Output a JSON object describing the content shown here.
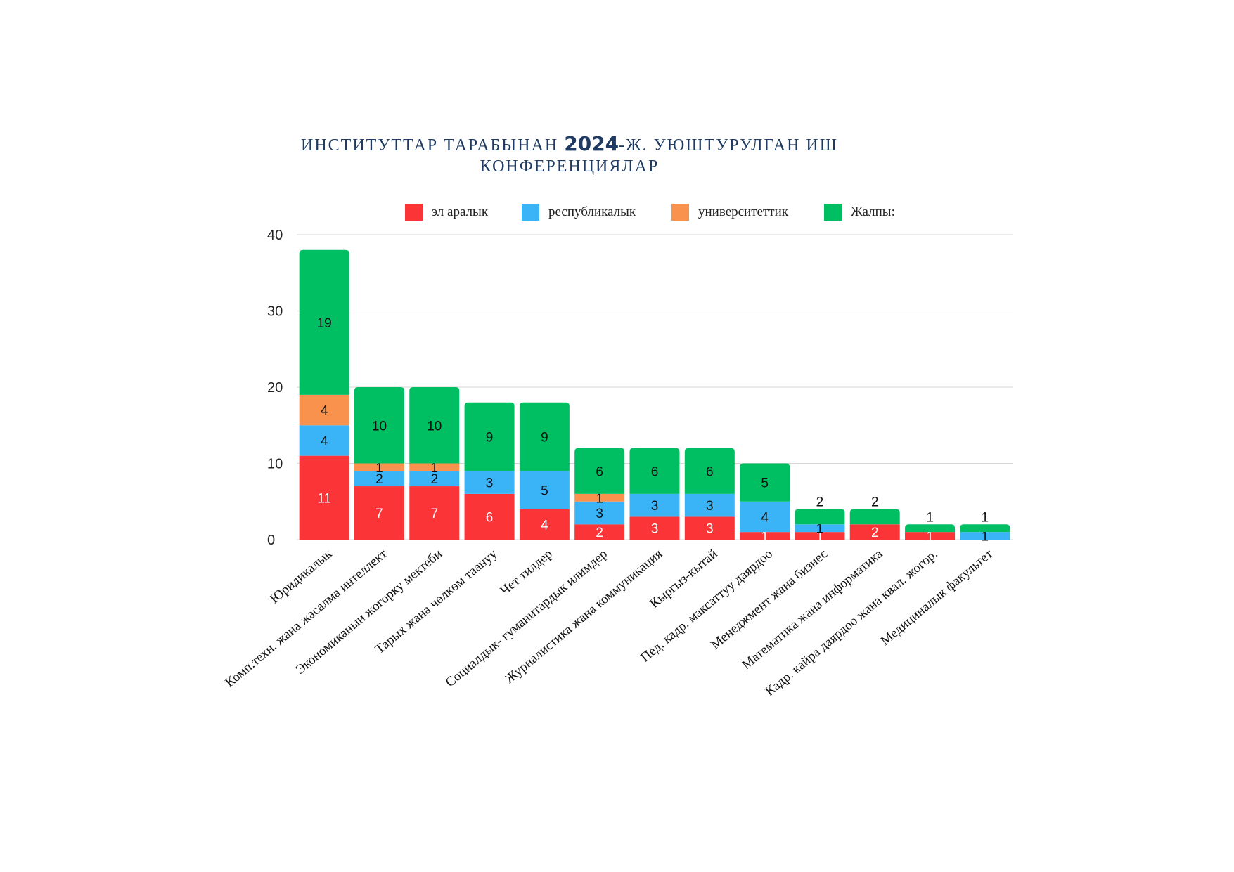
{
  "chart_data": {
    "type": "bar",
    "stacked": true,
    "title": {
      "prefix": "ИНСТИТУТТАР ТАРАБЫНАН ",
      "year": "2024",
      "suffix_line1": "-Ж. УЮШТУРУЛГАН ИШ",
      "line2": "КОНФЕРЕНЦИЯЛАР"
    },
    "legend_position": "top",
    "grid": true,
    "ylim": [
      0,
      40
    ],
    "yticks": [
      "0",
      "10",
      "20",
      "30",
      "40"
    ],
    "categories": [
      "Юридикалык",
      "Комп.техн. жана жасалма интеллект",
      "Экономиканын жогорку мектеби",
      "Тарых жана чөлкөм таануу",
      "Чет тилдер",
      "Социалдык- гуманитардык илимдер",
      "Журналистика жана коммуникация",
      "Кыргыз-кытай",
      "Пед. кадр. максаттуу даярдоо",
      "Менеджмент жана бизнес",
      "Математика жана информатика",
      "Кадр. кайра даярдоо жана квал. жогор.",
      "Медициналык факультет"
    ],
    "series": [
      {
        "name": "эл аралык",
        "color": "#fa3437",
        "values": [
          11,
          7,
          7,
          6,
          4,
          2,
          3,
          3,
          1,
          1,
          2,
          1,
          0
        ]
      },
      {
        "name": "республикалык",
        "color": "#3bb3f7",
        "values": [
          4,
          2,
          2,
          3,
          5,
          3,
          3,
          3,
          4,
          1,
          0,
          0,
          1
        ]
      },
      {
        "name": "университеттик",
        "color": "#f8924c",
        "values": [
          4,
          1,
          1,
          0,
          0,
          1,
          0,
          0,
          0,
          0,
          0,
          0,
          0
        ]
      },
      {
        "name": "Жалпы:",
        "color": "#00bf63",
        "values": [
          19,
          10,
          10,
          9,
          9,
          6,
          6,
          6,
          5,
          2,
          2,
          1,
          1
        ]
      }
    ]
  }
}
